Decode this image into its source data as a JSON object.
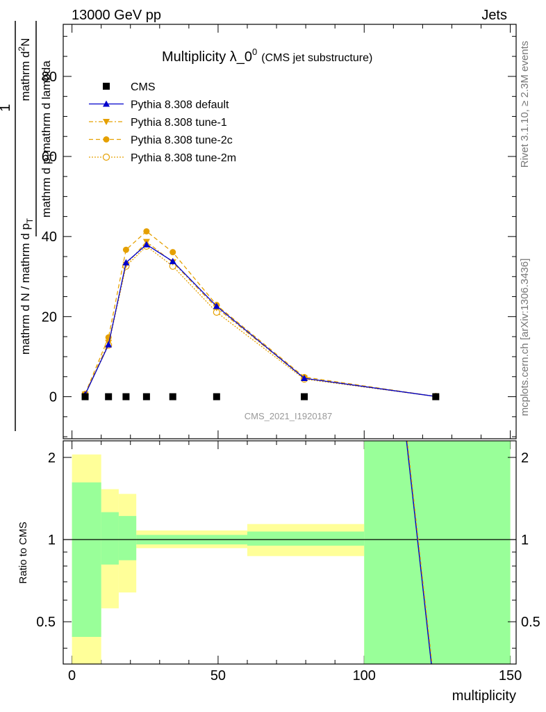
{
  "header": {
    "left": "13000 GeV pp",
    "right": "Jets"
  },
  "side_labels": {
    "rivet": "Rivet 3.1.10, ≥ 2.3M events",
    "mcplots": "mcplots.cern.ch [arXiv:1306.3436]"
  },
  "chart_data": {
    "type": "line",
    "title_main": "Multiplicity λ_0",
    "title_sup": "0",
    "title_sub": "(CMS jet substructure)",
    "watermark": "CMS_2021_I1920187",
    "ylabel_top": {
      "numerator": "mathrm d",
      "numerator_sup": "2",
      "numerator_tail": "N",
      "prefix_numerator": "1",
      "denominator_pre": "mathrm d p",
      "denominator_sub": "T",
      "denominator_tail": "mathrm d lambda",
      "prefix_denominator": "mathrm d N / mathrm d p",
      "prefix_denominator_sub": "T"
    },
    "ylabel_bottom": "Ratio to CMS",
    "xlabel": "multiplicity",
    "xlim": [
      -3,
      152
    ],
    "ylim_top": [
      -10.5,
      93
    ],
    "ylim_bottom_log": [
      0.35,
      2.3
    ],
    "x_ticks": [
      0,
      50,
      100,
      150
    ],
    "y_ticks_top": [
      0,
      20,
      40,
      60,
      80
    ],
    "y_ticks_bottom": [
      0.5,
      1,
      2
    ],
    "legend": {
      "placement": "top-left",
      "entries": [
        "CMS",
        "Pythia 8.308 default",
        "Pythia 8.308 tune-1",
        "Pythia 8.308 tune-2c",
        "Pythia 8.308 tune-2m"
      ]
    },
    "cms": {
      "name": "CMS",
      "x": [
        4.5,
        12.5,
        18.5,
        25.5,
        34.5,
        49.5,
        79.5,
        124.5
      ],
      "y": [
        0,
        0,
        0,
        0,
        0,
        0,
        0,
        0
      ]
    },
    "series": [
      {
        "name": "Pythia 8.308 default",
        "color": "#0000cc",
        "dash": "",
        "marker": "triangle-up",
        "x": [
          4.5,
          12.5,
          18.5,
          25.5,
          34.5,
          49.5,
          79.5,
          124.5
        ],
        "y": [
          0.5,
          13,
          33.5,
          38,
          33.8,
          22.6,
          4.6,
          0.05
        ]
      },
      {
        "name": "Pythia 8.308 tune-1",
        "color": "#e5a000",
        "dash": "6,3,2,3",
        "marker": "triangle-down",
        "x": [
          4.5,
          12.5,
          18.5,
          25.5,
          34.5,
          49.5,
          79.5,
          124.5
        ],
        "y": [
          0.6,
          13.5,
          33,
          38.7,
          33.6,
          22.2,
          4.6,
          0.05
        ]
      },
      {
        "name": "Pythia 8.308 tune-2c",
        "color": "#e5a000",
        "dash": "6,4",
        "marker": "circle-filled",
        "x": [
          4.5,
          12.5,
          18.5,
          25.5,
          34.5,
          49.5,
          79.5,
          124.5
        ],
        "y": [
          0.7,
          14.8,
          36.7,
          41.3,
          36.1,
          22.9,
          4.9,
          0.05
        ]
      },
      {
        "name": "Pythia 8.308 tune-2m",
        "color": "#e5a000",
        "dash": "2,2",
        "marker": "circle-open",
        "x": [
          4.5,
          12.5,
          18.5,
          25.5,
          34.5,
          49.5,
          79.5,
          124.5
        ],
        "y": [
          0.5,
          12.9,
          32.6,
          37.6,
          32.6,
          21.1,
          4.4,
          0.05
        ]
      }
    ],
    "ratio_bands": [
      {
        "x0": 0,
        "x1": 10,
        "green_lo": 0.44,
        "green_hi": 1.62,
        "yellow_lo": 0.35,
        "yellow_hi": 2.05
      },
      {
        "x0": 10,
        "x1": 16,
        "green_lo": 0.81,
        "green_hi": 1.26,
        "yellow_lo": 0.56,
        "yellow_hi": 1.53
      },
      {
        "x0": 16,
        "x1": 22,
        "green_lo": 0.84,
        "green_hi": 1.22,
        "yellow_lo": 0.64,
        "yellow_hi": 1.47
      },
      {
        "x0": 22,
        "x1": 60,
        "green_lo": 0.96,
        "green_hi": 1.04,
        "yellow_lo": 0.93,
        "yellow_hi": 1.08
      },
      {
        "x0": 60,
        "x1": 100,
        "green_lo": 0.95,
        "green_hi": 1.07,
        "yellow_lo": 0.87,
        "yellow_hi": 1.14
      },
      {
        "x0": 100,
        "x1": 150,
        "green_lo": 0.35,
        "green_hi": 2.3,
        "yellow_lo": 0.35,
        "yellow_hi": 2.3
      }
    ],
    "ratio_line": {
      "x": [
        114.5,
        123.0
      ],
      "y": [
        2.3,
        0.35
      ]
    }
  }
}
